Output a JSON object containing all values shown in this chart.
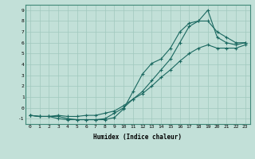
{
  "xlabel": "Humidex (Indice chaleur)",
  "bg_color": "#c2e0d8",
  "grid_color": "#a0c8be",
  "line_color": "#1a6860",
  "xlim": [
    -0.5,
    23.5
  ],
  "ylim": [
    -1.5,
    9.5
  ],
  "xticks": [
    0,
    1,
    2,
    3,
    4,
    5,
    6,
    7,
    8,
    9,
    10,
    11,
    12,
    13,
    14,
    15,
    16,
    17,
    18,
    19,
    20,
    21,
    22,
    23
  ],
  "yticks": [
    -1,
    0,
    1,
    2,
    3,
    4,
    5,
    6,
    7,
    8,
    9
  ],
  "line1_x": [
    0,
    1,
    2,
    3,
    4,
    5,
    6,
    7,
    8,
    9,
    10,
    11,
    12,
    13,
    14,
    15,
    16,
    17,
    18,
    19,
    20,
    21,
    22,
    23
  ],
  "line1_y": [
    -0.7,
    -0.8,
    -0.8,
    -1.0,
    -1.1,
    -1.1,
    -1.1,
    -1.1,
    -1.1,
    -0.9,
    -0.1,
    1.5,
    3.1,
    4.1,
    4.5,
    5.5,
    7.0,
    7.8,
    8.0,
    9.0,
    6.5,
    6.0,
    5.8,
    6.0
  ],
  "line2_x": [
    0,
    1,
    2,
    3,
    4,
    5,
    6,
    7,
    8,
    9,
    10,
    11,
    12,
    13,
    14,
    15,
    16,
    17,
    18,
    19,
    20,
    21,
    22,
    23
  ],
  "line2_y": [
    -0.7,
    -0.8,
    -0.8,
    -0.8,
    -1.0,
    -1.1,
    -1.1,
    -1.1,
    -1.0,
    -0.5,
    0.0,
    0.8,
    1.5,
    2.5,
    3.5,
    4.5,
    6.0,
    7.5,
    8.0,
    8.0,
    7.0,
    6.5,
    6.0,
    6.0
  ],
  "line3_x": [
    0,
    1,
    2,
    3,
    4,
    5,
    6,
    7,
    8,
    9,
    10,
    11,
    12,
    13,
    14,
    15,
    16,
    17,
    18,
    19,
    20,
    21,
    22,
    23
  ],
  "line3_y": [
    -0.7,
    -0.8,
    -0.8,
    -0.7,
    -0.8,
    -0.8,
    -0.7,
    -0.7,
    -0.5,
    -0.3,
    0.2,
    0.8,
    1.3,
    2.0,
    2.8,
    3.5,
    4.3,
    5.0,
    5.5,
    5.8,
    5.5,
    5.5,
    5.5,
    5.8
  ]
}
